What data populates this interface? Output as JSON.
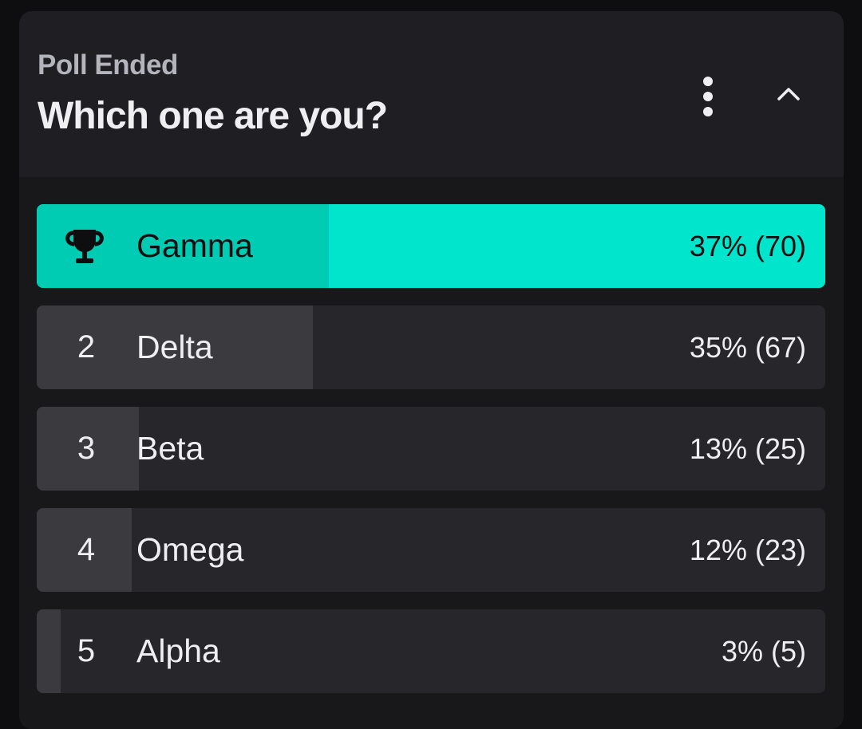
{
  "poll": {
    "status": "Poll Ended",
    "question": "Which one are you?",
    "menu_icon": "more-vertical-icon",
    "collapse_icon": "chevron-up-icon",
    "winner_icon": "trophy-icon",
    "colors": {
      "background": "#0e0e10",
      "card": "#18181b",
      "header": "#1f1f23",
      "winner_accent": "#00e5cb",
      "row": "#26262b",
      "row_fill": "#3a3a3f",
      "text": "#efeff1",
      "muted": "#b4b4bc"
    },
    "options": [
      {
        "rank": "",
        "label": "Gamma",
        "result": "37% (70)",
        "percent": 37,
        "winner": true
      },
      {
        "rank": "2",
        "label": "Delta",
        "result": "35% (67)",
        "percent": 35,
        "winner": false
      },
      {
        "rank": "3",
        "label": "Beta",
        "result": "13% (25)",
        "percent": 13,
        "winner": false
      },
      {
        "rank": "4",
        "label": "Omega",
        "result": "12% (23)",
        "percent": 12,
        "winner": false
      },
      {
        "rank": "5",
        "label": "Alpha",
        "result": "3% (5)",
        "percent": 3,
        "winner": false
      }
    ]
  }
}
